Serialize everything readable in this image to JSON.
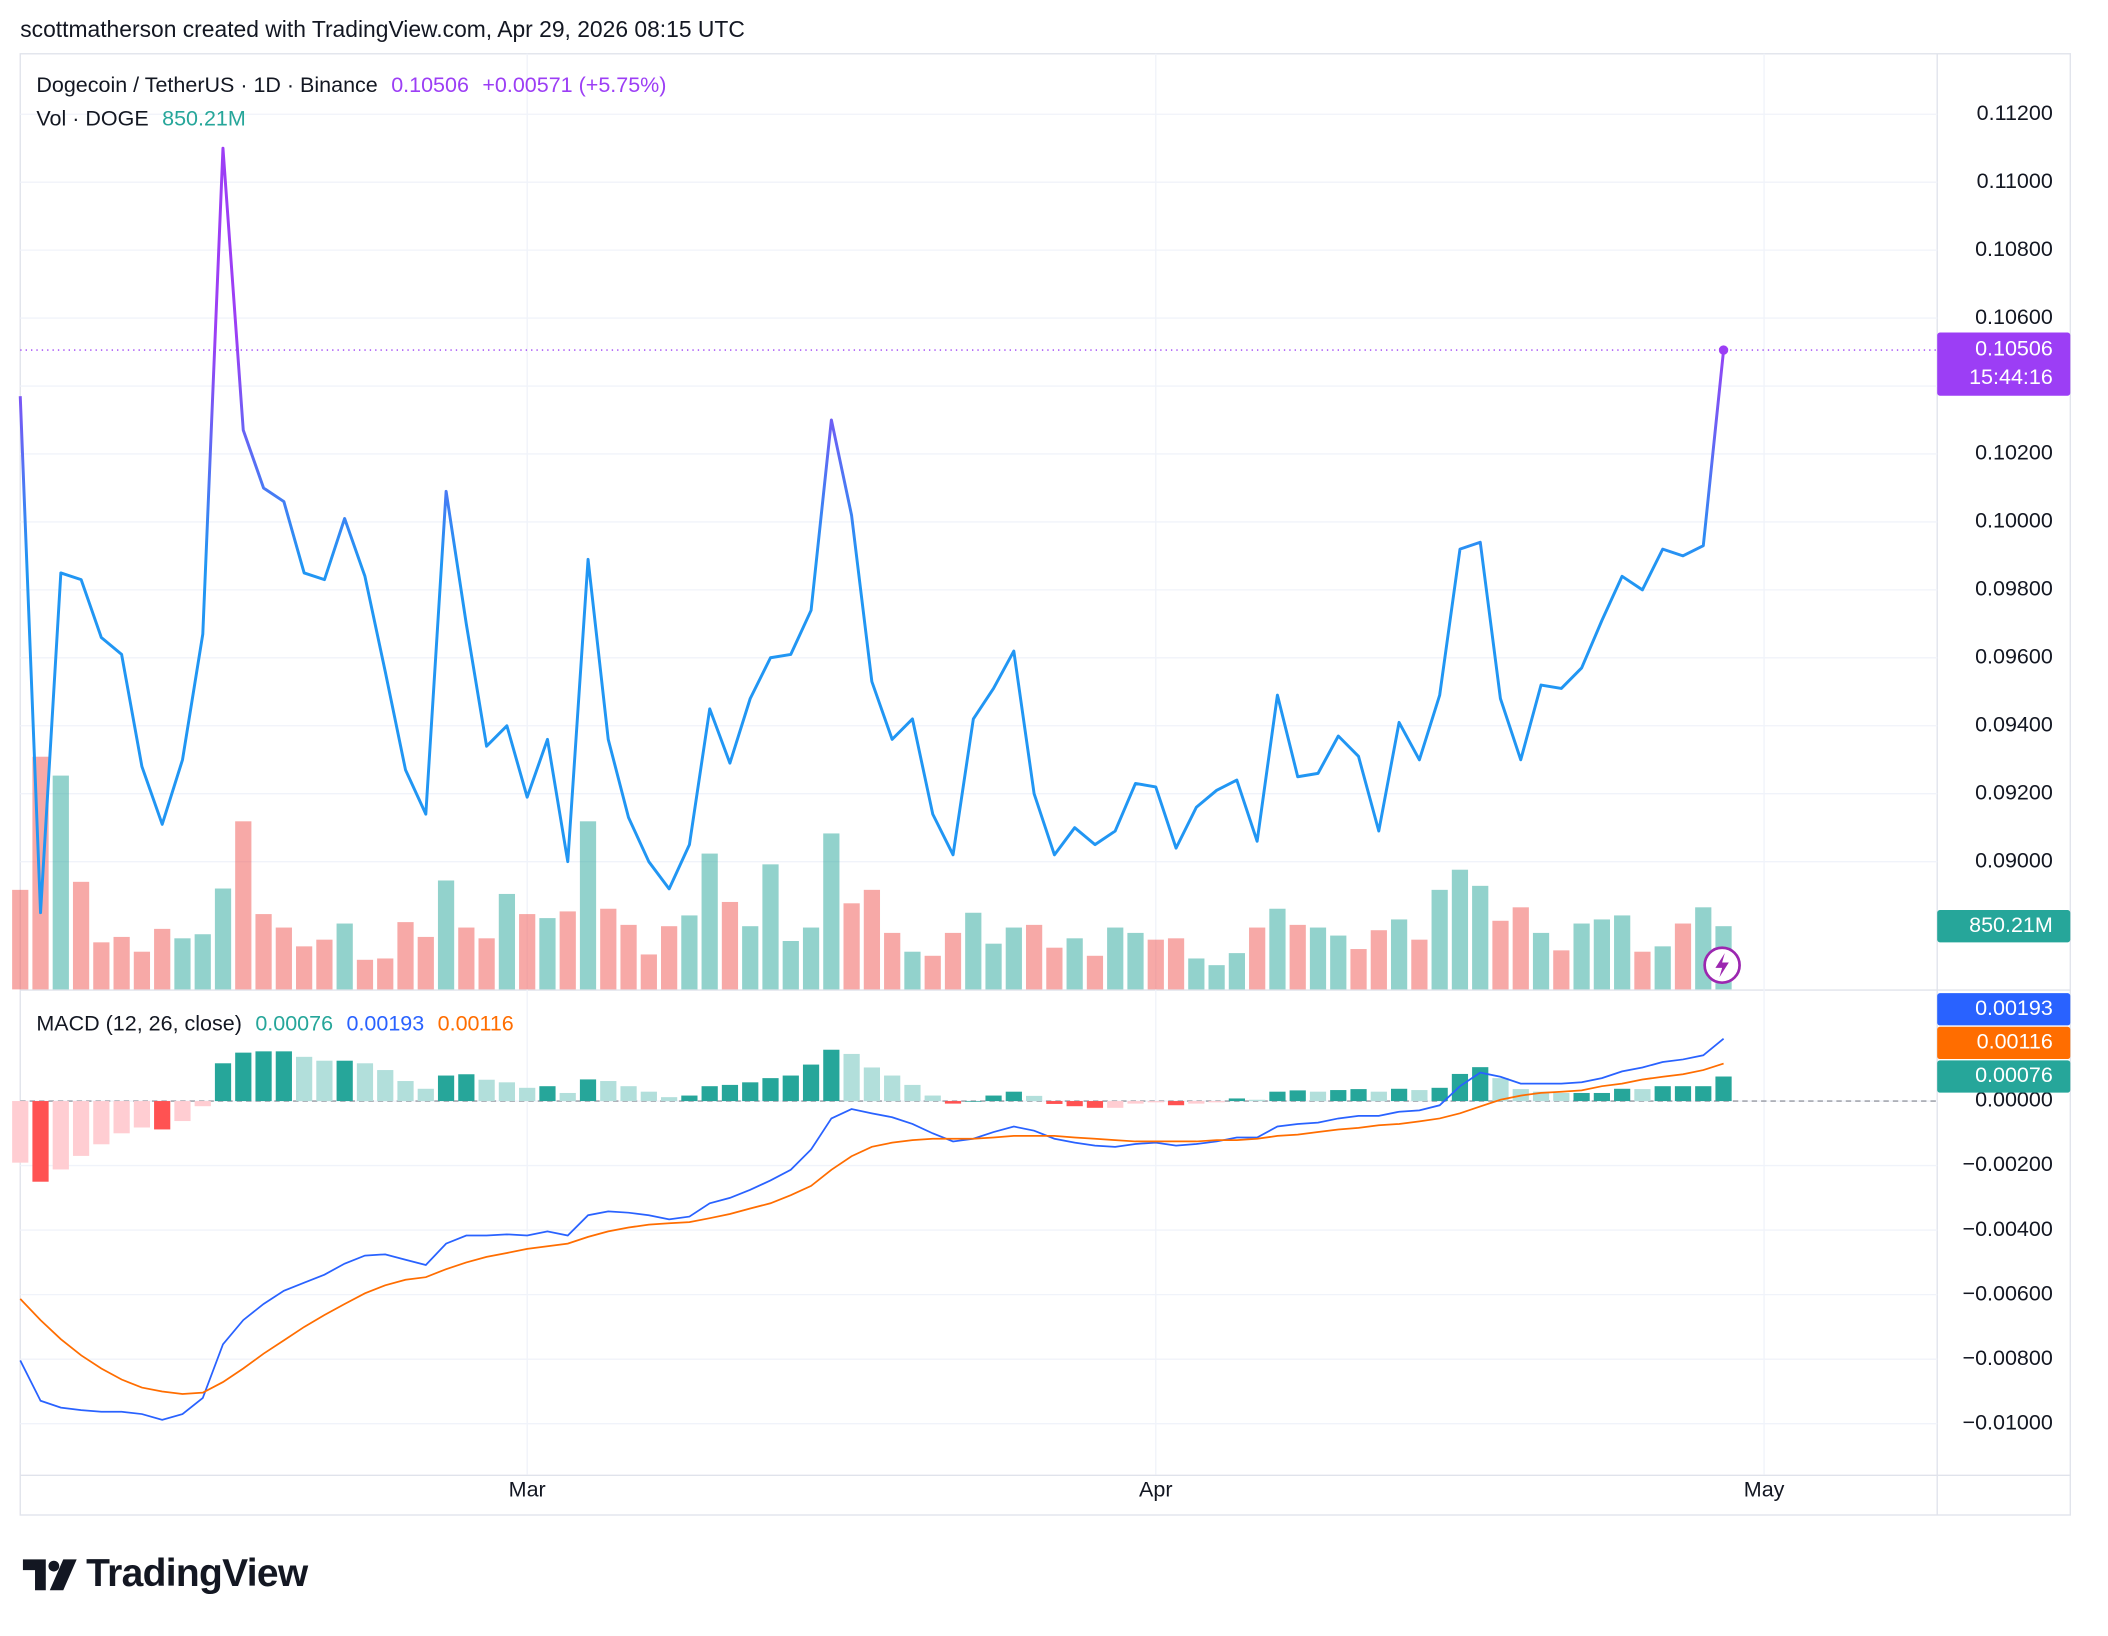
{
  "header": {
    "credit": "scottmatherson created with TradingView.com, Apr 29, 2026 08:15 UTC",
    "brand": "TradingView"
  },
  "chart_data": [
    {
      "type": "line",
      "title": "Dogecoin / TetherUS · 1D · Binance",
      "last_value_label": "0.10506",
      "change_label": "+0.00571 (+5.75%)",
      "countdown": "15:44:16",
      "color_high": "#9c3ef5",
      "color_low": "#2196f3",
      "values": [
        0.1037,
        0.0885,
        0.0985,
        0.0983,
        0.0966,
        0.0961,
        0.0928,
        0.0911,
        0.093,
        0.0967,
        0.111,
        0.1027,
        0.101,
        0.1006,
        0.0985,
        0.0983,
        0.1001,
        0.0984,
        0.0956,
        0.0927,
        0.0914,
        0.1009,
        0.097,
        0.0934,
        0.094,
        0.0919,
        0.0936,
        0.09,
        0.0989,
        0.0936,
        0.0913,
        0.09,
        0.0892,
        0.0905,
        0.0945,
        0.0929,
        0.0948,
        0.096,
        0.0961,
        0.0974,
        0.103,
        0.1002,
        0.0953,
        0.0936,
        0.0942,
        0.0914,
        0.0902,
        0.0942,
        0.0951,
        0.0962,
        0.092,
        0.0902,
        0.091,
        0.0905,
        0.0909,
        0.0923,
        0.0922,
        0.0904,
        0.0916,
        0.0921,
        0.0924,
        0.0906,
        0.0949,
        0.0925,
        0.0926,
        0.0937,
        0.0931,
        0.0909,
        0.0941,
        0.093,
        0.0949,
        0.0992,
        0.0994,
        0.0948,
        0.093,
        0.0952,
        0.0951,
        0.0957,
        0.0971,
        0.0984,
        0.098,
        0.0992,
        0.099,
        0.0993,
        0.10506
      ],
      "ylim": [
        0.08624,
        0.11378
      ],
      "yticks": [
        {
          "value": 0.09,
          "label": "0.09000"
        },
        {
          "value": 0.092,
          "label": "0.09200"
        },
        {
          "value": 0.094,
          "label": "0.09400"
        },
        {
          "value": 0.096,
          "label": "0.09600"
        },
        {
          "value": 0.098,
          "label": "0.09800"
        },
        {
          "value": 0.1,
          "label": "0.10000"
        },
        {
          "value": 0.102,
          "label": "0.10200"
        },
        {
          "value": 0.104,
          "label": "0.10400"
        },
        {
          "value": 0.106,
          "label": "0.10600"
        },
        {
          "value": 0.108,
          "label": "0.10800"
        },
        {
          "value": 0.11,
          "label": "0.11000"
        },
        {
          "value": 0.112,
          "label": "0.11200"
        }
      ],
      "xlim": [
        0,
        101.1
      ],
      "xticks": [
        {
          "value": 25,
          "label": "Mar"
        },
        {
          "value": 56,
          "label": "Apr"
        },
        {
          "value": 86,
          "label": "May"
        }
      ],
      "grid": true
    },
    {
      "type": "volume",
      "title": "Vol · DOGE",
      "last_value_label": "850.21M",
      "up_color": "#26a69a",
      "down_color": "#ef5350",
      "values": [
        1339,
        3130,
        2876,
        1447,
        633,
        706,
        507,
        814,
        687,
        742,
        1357,
        2261,
        1013,
        832,
        579,
        669,
        886,
        398,
        416,
        905,
        706,
        1465,
        832,
        687,
        1284,
        1013,
        959,
        1049,
        2261,
        1085,
        868,
        470,
        850,
        995,
        1827,
        1176,
        850,
        1682,
        651,
        832,
        2098,
        1158,
        1339,
        760,
        507,
        452,
        760,
        1031,
        615,
        832,
        868,
        561,
        687,
        452,
        832,
        760,
        669,
        687,
        416,
        326,
        488,
        832,
        1085,
        868,
        832,
        724,
        543,
        796,
        941,
        669,
        1339,
        1610,
        1393,
        923,
        1104,
        760,
        525,
        886,
        941,
        995,
        507,
        579,
        886,
        1104,
        850.21
      ]
    },
    {
      "type": "macd",
      "title": "MACD (12, 26, close)",
      "hist_colors": {
        "grow_above": "#26a69a",
        "fall_above": "#b2dfdb",
        "grow_below": "#ffcdd2",
        "fall_below": "#ff5252"
      },
      "series": [
        {
          "value_label": "0.00076",
          "color": "#26a69a",
          "values": [
            -0.00191,
            -0.0025,
            -0.00212,
            -0.0017,
            -0.00134,
            -0.001,
            -0.00082,
            -0.00088,
            -0.00062,
            -0.00016,
            0.00117,
            0.0015,
            0.00154,
            0.00154,
            0.00137,
            0.00125,
            0.00125,
            0.00117,
            0.00096,
            0.00062,
            0.00038,
            0.00079,
            0.00083,
            0.00066,
            0.00058,
            0.00041,
            0.00046,
            0.00025,
            0.00067,
            0.00062,
            0.00046,
            0.00029,
            0.00012,
            0.00017,
            0.00046,
            0.0005,
            0.00058,
            0.00071,
            0.00079,
            0.00113,
            0.00159,
            0.00146,
            0.00104,
            0.00079,
            0.0005,
            0.00017,
            -8e-05,
            0,
            0.00017,
            0.00029,
            0.00016,
            -9e-05,
            -0.00016,
            -0.00021,
            -0.00021,
            -8e-05,
            -4e-05,
            -0.00013,
            -8e-05,
            -4e-05,
            8e-05,
            4e-05,
            0.00029,
            0.00033,
            0.00029,
            0.00034,
            0.00037,
            0.00029,
            0.00038,
            0.00034,
            0.00041,
            0.00084,
            0.00105,
            0.00071,
            0.00037,
            0.00029,
            0.00025,
            0.00025,
            0.00025,
            0.00038,
            0.00037,
            0.00046,
            0.00046,
            0.00046,
            0.00076
          ]
        },
        {
          "value_label": "0.00193",
          "color": "#2962ff",
          "values": [
            -0.00804,
            -0.00929,
            -0.0095,
            -0.00958,
            -0.00963,
            -0.00963,
            -0.0097,
            -0.00988,
            -0.0097,
            -0.0092,
            -0.00754,
            -0.00679,
            -0.00629,
            -0.00588,
            -0.00563,
            -0.00538,
            -0.00504,
            -0.00479,
            -0.00475,
            -0.00492,
            -0.00508,
            -0.00442,
            -0.00417,
            -0.00417,
            -0.00413,
            -0.00417,
            -0.00404,
            -0.00417,
            -0.00354,
            -0.00342,
            -0.00346,
            -0.00354,
            -0.00367,
            -0.00358,
            -0.00317,
            -0.003,
            -0.00275,
            -0.00246,
            -0.00213,
            -0.0015,
            -0.00054,
            -0.00025,
            -0.00038,
            -0.0005,
            -0.00071,
            -0.001,
            -0.00125,
            -0.00117,
            -0.00096,
            -0.00079,
            -0.00092,
            -0.00117,
            -0.00129,
            -0.00138,
            -0.00142,
            -0.00133,
            -0.00129,
            -0.00138,
            -0.00133,
            -0.00125,
            -0.00113,
            -0.00113,
            -0.00079,
            -0.00071,
            -0.00067,
            -0.00054,
            -0.00046,
            -0.00046,
            -0.00033,
            -0.00029,
            -0.00013,
            0.00046,
            0.00088,
            0.00075,
            0.00054,
            0.00054,
            0.00054,
            0.00058,
            0.00071,
            0.00092,
            0.00104,
            0.00121,
            0.00129,
            0.00142,
            0.00193
          ]
        },
        {
          "value_label": "0.00116",
          "color": "#ff6d00",
          "values": [
            -0.00613,
            -0.00679,
            -0.00738,
            -0.00788,
            -0.00829,
            -0.00863,
            -0.00888,
            -0.009,
            -0.00908,
            -0.00904,
            -0.00871,
            -0.00829,
            -0.00783,
            -0.00742,
            -0.007,
            -0.00663,
            -0.00629,
            -0.00596,
            -0.00571,
            -0.00554,
            -0.00546,
            -0.00521,
            -0.005,
            -0.00483,
            -0.00471,
            -0.00458,
            -0.0045,
            -0.00442,
            -0.00421,
            -0.00404,
            -0.00392,
            -0.00383,
            -0.00379,
            -0.00375,
            -0.00363,
            -0.0035,
            -0.00333,
            -0.00317,
            -0.00292,
            -0.00263,
            -0.00213,
            -0.00171,
            -0.00142,
            -0.00129,
            -0.00121,
            -0.00117,
            -0.00117,
            -0.00117,
            -0.00113,
            -0.00108,
            -0.00108,
            -0.00108,
            -0.00113,
            -0.00117,
            -0.00121,
            -0.00125,
            -0.00125,
            -0.00125,
            -0.00125,
            -0.00121,
            -0.00121,
            -0.00117,
            -0.00108,
            -0.00104,
            -0.00096,
            -0.00088,
            -0.00083,
            -0.00075,
            -0.00071,
            -0.00063,
            -0.00054,
            -0.00038,
            -0.00017,
            4e-05,
            0.00017,
            0.00025,
            0.00029,
            0.00033,
            0.00046,
            0.00054,
            0.00067,
            0.00075,
            0.00083,
            0.00096,
            0.00116
          ]
        }
      ],
      "ylim": [
        -0.01158,
        0.00346
      ],
      "yticks": [
        {
          "value": 0,
          "label": "0.00000"
        },
        {
          "value": -0.002,
          "label": "−0.00200"
        },
        {
          "value": -0.004,
          "label": "−0.00400"
        },
        {
          "value": -0.006,
          "label": "−0.00600"
        },
        {
          "value": -0.008,
          "label": "−0.00800"
        },
        {
          "value": -0.01,
          "label": "−0.01000"
        }
      ]
    }
  ]
}
